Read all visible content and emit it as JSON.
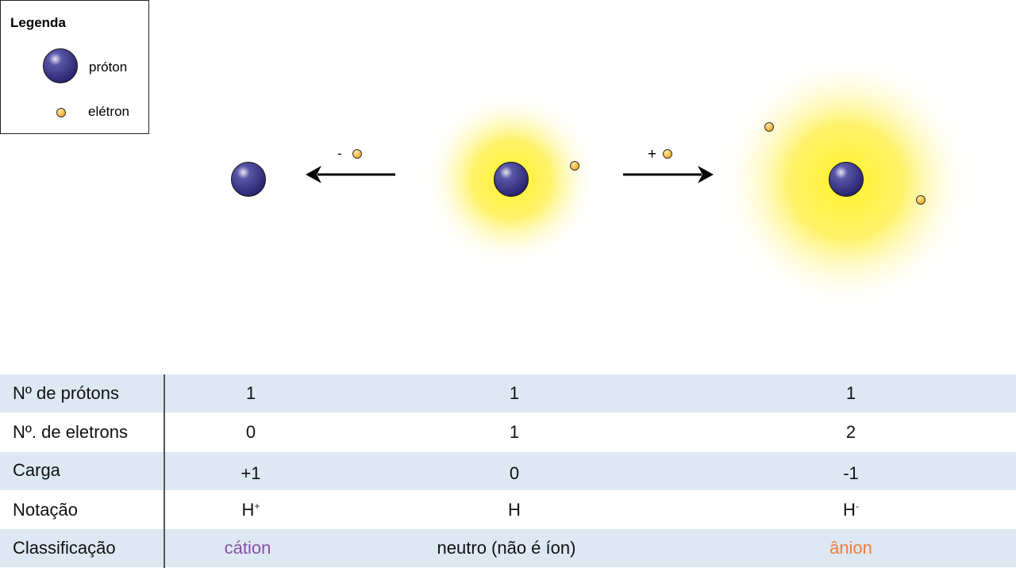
{
  "legend": {
    "title": "Legenda",
    "proton_label": "próton",
    "electron_label": "elétron"
  },
  "arrows": {
    "remove_sign": "-",
    "add_sign": "+"
  },
  "colors": {
    "proton": "#2e2a7a",
    "electron": "#f5b324",
    "glow": "#fff23a",
    "cation": "#8a4fa8",
    "anion": "#f07c3a",
    "row_blue": "#dde8f3"
  },
  "table": {
    "rows": [
      {
        "label": "Nº de prótons",
        "values": [
          "1",
          "1",
          "1"
        ]
      },
      {
        "label": "Nº. de eletrons",
        "values": [
          "0",
          "1",
          "2"
        ]
      },
      {
        "label": "Carga",
        "values": [
          "+1",
          "0",
          "-1"
        ]
      },
      {
        "label": "Notação",
        "values": [
          "H",
          "H",
          "H"
        ],
        "superscripts": [
          "+",
          "",
          "-"
        ]
      },
      {
        "label": "Classificação",
        "values": [
          "cátion",
          "neutro (não é íon)",
          "ânion"
        ]
      }
    ]
  }
}
